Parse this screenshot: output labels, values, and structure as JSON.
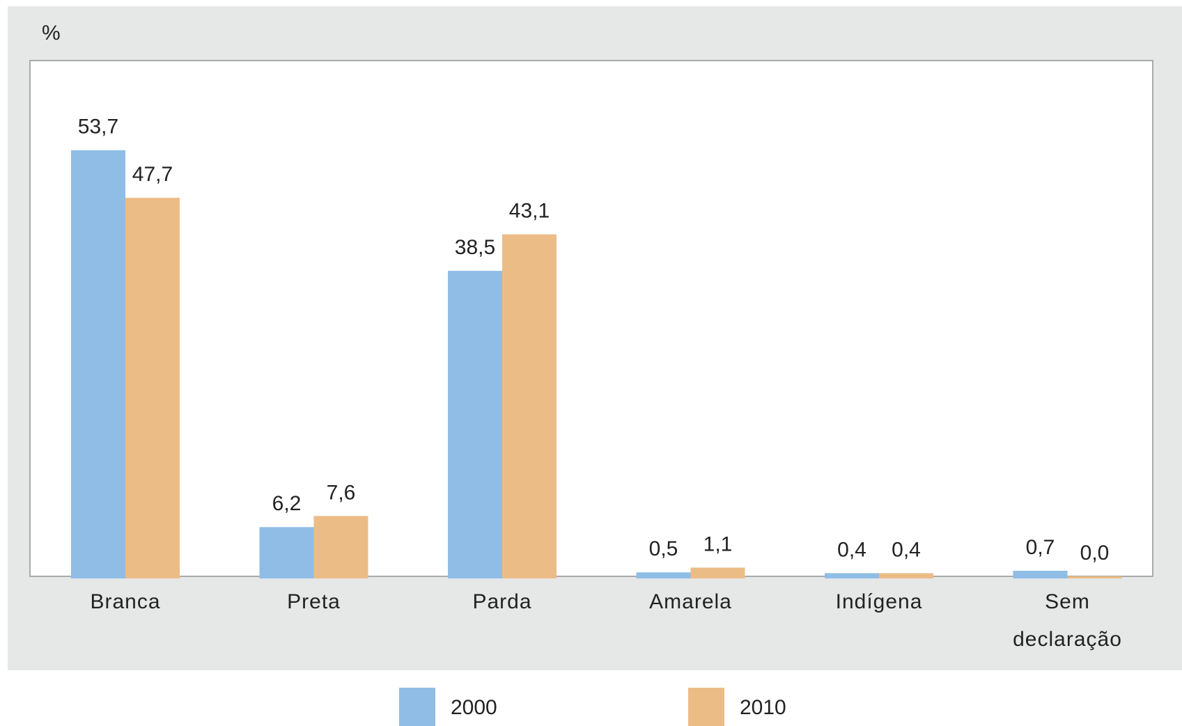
{
  "chart_data": {
    "type": "bar",
    "y_label": "%",
    "categories": [
      "Branca",
      "Preta",
      "Parda",
      "Amarela",
      "Indígena",
      "Sem declaração"
    ],
    "series": [
      {
        "name": "2000",
        "color": "#8fbde6",
        "values": [
          53.7,
          6.2,
          38.5,
          0.5,
          0.4,
          0.7
        ],
        "value_labels": [
          "53,7",
          "6,2",
          "38,5",
          "0,5",
          "0,4",
          "0,7"
        ]
      },
      {
        "name": "2010",
        "color": "#ecbc87",
        "values": [
          47.7,
          7.6,
          43.1,
          1.1,
          0.4,
          0.0
        ],
        "value_labels": [
          "47,7",
          "7,6",
          "43,1",
          "1,1",
          "0,4",
          "0,0"
        ]
      }
    ],
    "ylim": [
      0,
      65
    ]
  }
}
